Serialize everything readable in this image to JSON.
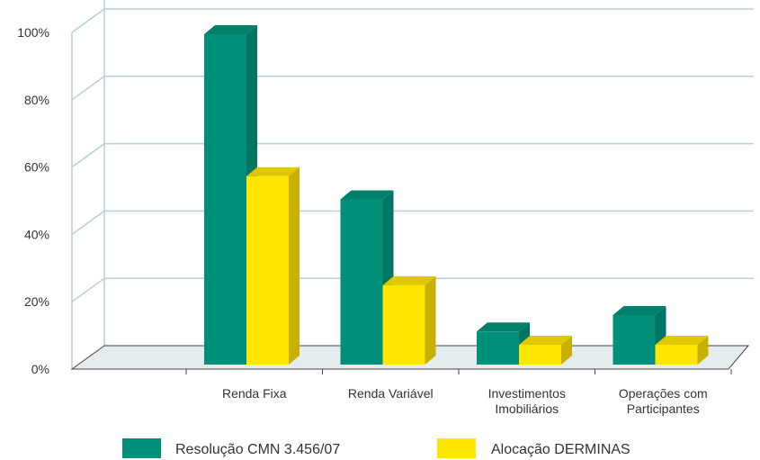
{
  "chart_data": {
    "type": "bar",
    "title": "",
    "xlabel": "",
    "ylabel": "",
    "categories": [
      [
        "Renda Fixa"
      ],
      [
        "Renda Variável"
      ],
      [
        "Investimentos",
        "Imobiliários"
      ],
      [
        "Operações com",
        "Participantes"
      ]
    ],
    "series": [
      {
        "name": "Resolução CMN 3.456/07",
        "values": [
          100,
          50,
          10,
          15
        ],
        "color": "#00907a",
        "side_color": "#007563",
        "top_color": "#00806b"
      },
      {
        "name": "Alocação DERMINAS",
        "values": [
          57,
          24,
          6,
          6
        ],
        "color": "#ffe600",
        "side_color": "#c8b000",
        "top_color": "#e0c800"
      }
    ],
    "ylim": [
      0,
      100
    ],
    "yticks": [
      0,
      20,
      40,
      60,
      80,
      100
    ],
    "ytick_labels": [
      "0%",
      "20%",
      "40%",
      "60%",
      "80%",
      "100%"
    ],
    "grid": true,
    "legend_position": "bottom"
  },
  "colors": {
    "grid": "#b7cfd8",
    "floor": "#e4ecef",
    "axis": "#444444"
  }
}
